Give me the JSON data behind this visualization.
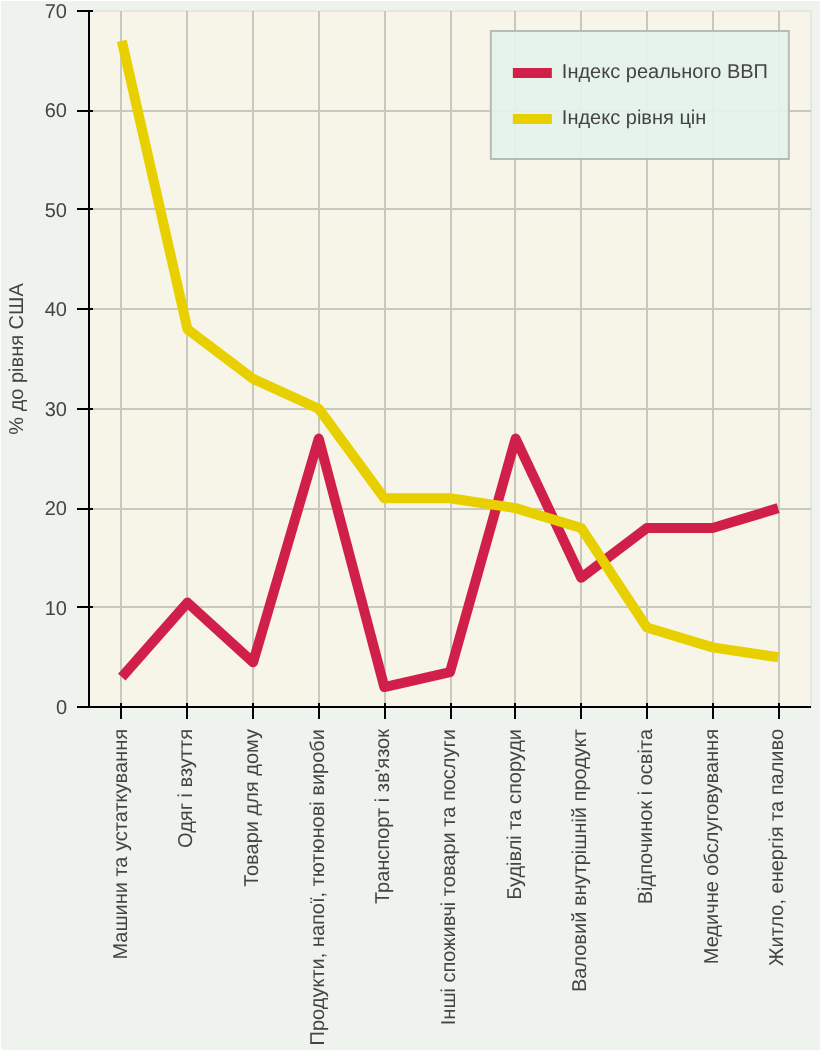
{
  "chart_data": {
    "type": "line",
    "ylabel": "% до рівня США",
    "categories": [
      "Машини та устаткування",
      "Одяг і взуття",
      "Товари для дому",
      "Продукти, напої, тютюнові вироби",
      "Транспорт і зв'язок",
      "Інші споживчі товари та послуги",
      "Будівлі та споруди",
      "Валовий внутрішній продукт",
      "Відпочинок і освіта",
      "Медичне обслуговування",
      "Житло, енергія та паливо"
    ],
    "series": [
      {
        "name": "Індекс реального ВВП",
        "color": "#d0204a",
        "values": [
          3,
          10.5,
          4.5,
          27,
          2,
          3.5,
          27,
          13,
          18,
          18,
          20
        ]
      },
      {
        "name": "Індекс рівня цін",
        "color": "#e8d000",
        "values": [
          67,
          38,
          33,
          30,
          21,
          21,
          20,
          18,
          8,
          6,
          5
        ]
      }
    ],
    "ylim": [
      0,
      70
    ],
    "yticks": [
      0,
      10,
      20,
      30,
      40,
      50,
      60,
      70
    ],
    "grid": true,
    "legend": "top right",
    "line_style": "solid",
    "marker": "none"
  }
}
